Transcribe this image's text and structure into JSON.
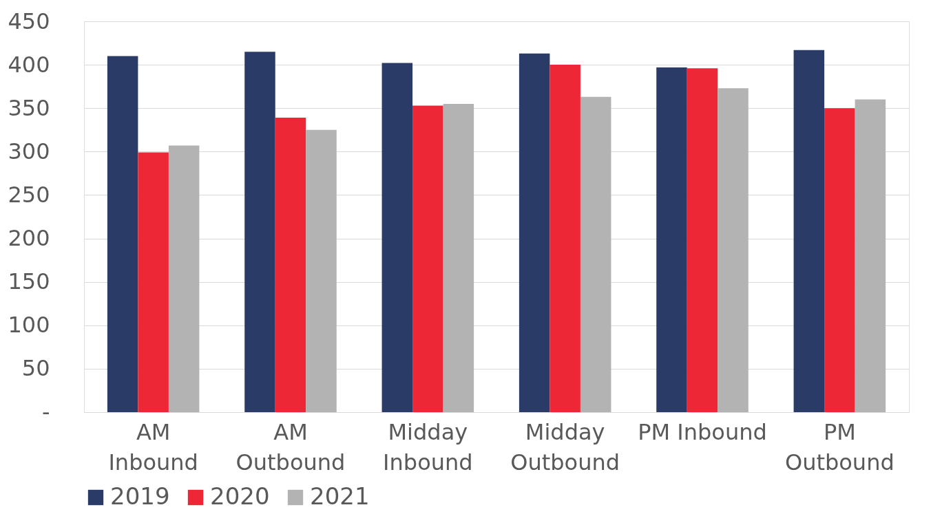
{
  "chart_data": {
    "type": "bar",
    "categories": [
      "AM\nInbound",
      "AM\nOutbound",
      "Midday\nInbound",
      "Midday\nOutbound",
      "PM Inbound",
      "PM\nOutbound"
    ],
    "series": [
      {
        "name": "2019",
        "color": "#2a3b68",
        "values": [
          410,
          415,
          402,
          413,
          397,
          417
        ]
      },
      {
        "name": "2020",
        "color": "#ee2737",
        "values": [
          299,
          339,
          353,
          400,
          396,
          350
        ]
      },
      {
        "name": "2021",
        "color": "#b3b3b3",
        "values": [
          307,
          325,
          355,
          363,
          373,
          360
        ]
      }
    ],
    "ylim": [
      0,
      450
    ],
    "yticks": [
      {
        "value": 0,
        "label": "-"
      },
      50,
      100,
      150,
      200,
      250,
      300,
      350,
      400,
      450
    ],
    "grid": "y",
    "legend": "bottom"
  }
}
